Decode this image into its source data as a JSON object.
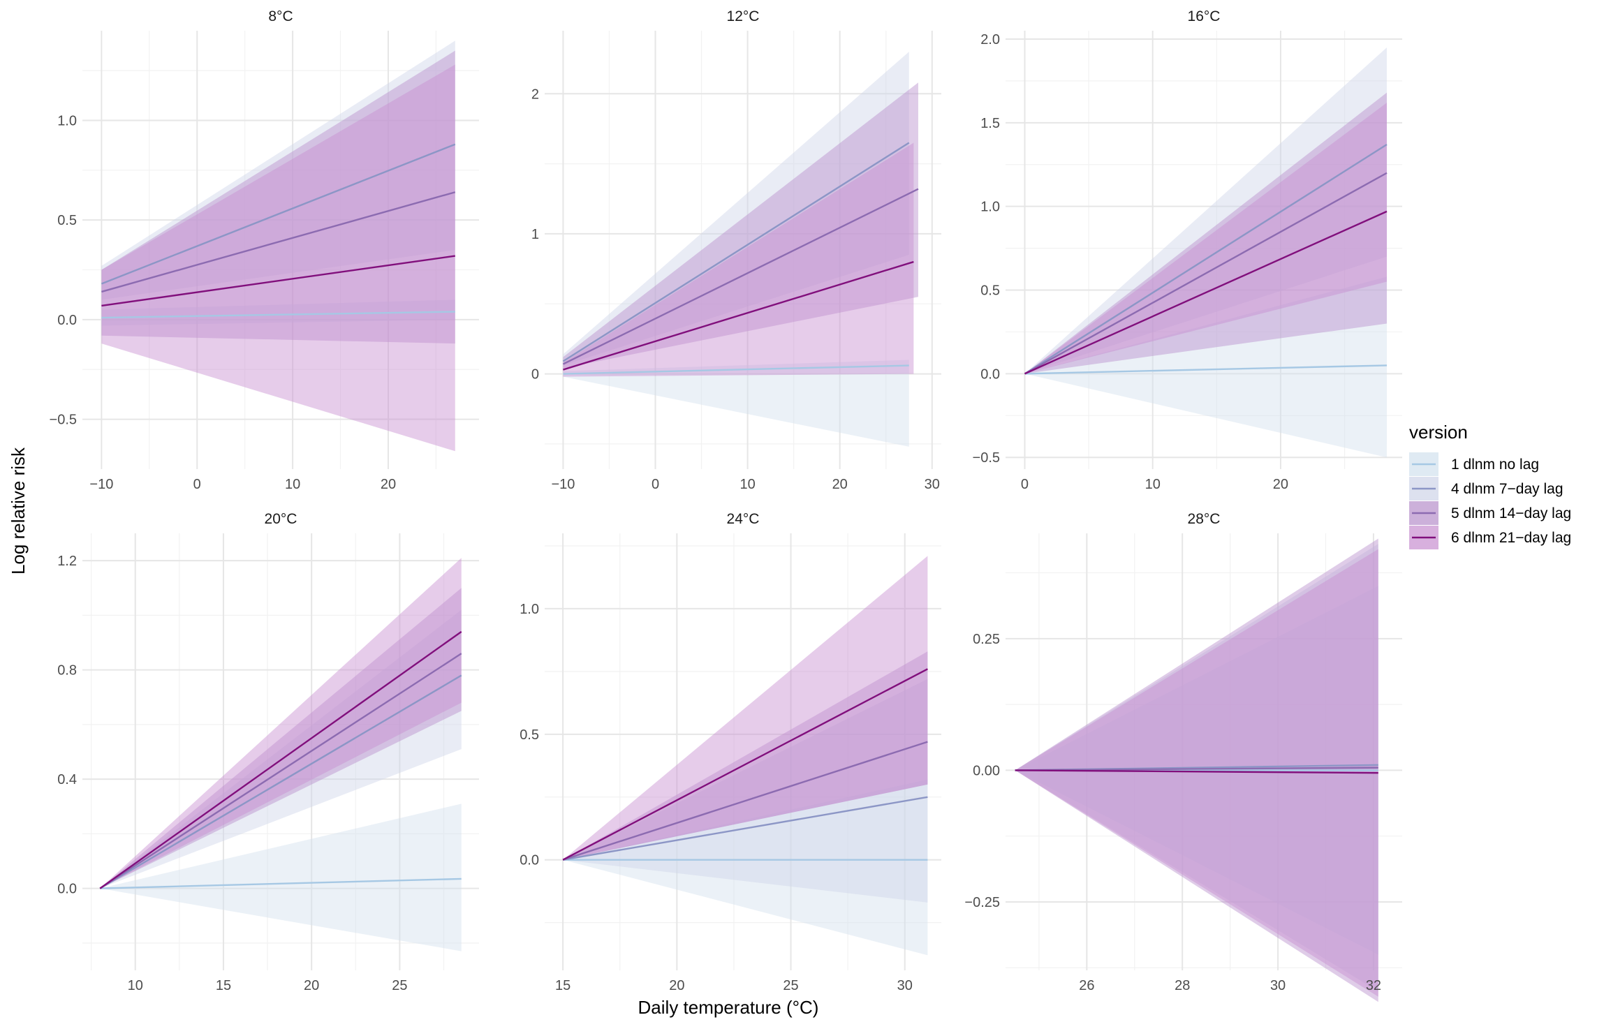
{
  "figure": {
    "ylabel": "Log relative risk",
    "xlabel": "Daily temperature (°C)",
    "legend": {
      "title": "version",
      "position": "right",
      "items": [
        {
          "label": "1 dlnm no lag",
          "line": "#a6c8e4",
          "fill": "#d2e1ee"
        },
        {
          "label": "4 dlnm 7−day lag",
          "line": "#8c96c6",
          "fill": "#cfd4e8"
        },
        {
          "label": "5 dlnm 14−day lag",
          "line": "#8c6bb1",
          "fill": "#b78fcb"
        },
        {
          "label": "6 dlnm 21−day lag",
          "line": "#810f7c",
          "fill": "#c88ed0"
        }
      ]
    }
  },
  "chart_data": [
    {
      "type": "line",
      "title": "8°C",
      "xlim": [
        -12,
        29.5
      ],
      "ylim": [
        -0.75,
        1.45
      ],
      "xticks": [
        -10,
        0,
        10,
        20
      ],
      "yticks": [
        -0.5,
        0.0,
        0.5,
        1.0
      ],
      "xtick_labels": [
        "−10",
        "0",
        "10",
        "20"
      ],
      "ytick_labels": [
        "−0.5",
        "0.0",
        "0.5",
        "1.0"
      ],
      "series": [
        {
          "name": "1 dlnm no lag",
          "x": [
            -10,
            27
          ],
          "y": [
            0.01,
            0.04
          ],
          "lower": [
            -0.03,
            0.0
          ],
          "upper": [
            0.05,
            0.1
          ]
        },
        {
          "name": "4 dlnm 7−day lag",
          "x": [
            -10,
            27
          ],
          "y": [
            0.18,
            0.88
          ],
          "lower": [
            0.1,
            0.35
          ],
          "upper": [
            0.27,
            1.4
          ]
        },
        {
          "name": "5 dlnm 14−day lag",
          "x": [
            -10,
            27
          ],
          "y": [
            0.14,
            0.64
          ],
          "lower": [
            -0.08,
            -0.12
          ],
          "upper": [
            0.25,
            1.35
          ]
        },
        {
          "name": "6 dlnm 21−day lag",
          "x": [
            -10,
            27
          ],
          "y": [
            0.07,
            0.32
          ],
          "lower": [
            -0.12,
            -0.66
          ],
          "upper": [
            0.25,
            1.28
          ]
        }
      ]
    },
    {
      "type": "line",
      "title": "12°C",
      "xlim": [
        -12,
        31
      ],
      "ylim": [
        -0.68,
        2.45
      ],
      "xticks": [
        -10,
        0,
        10,
        20,
        30
      ],
      "yticks": [
        0,
        1,
        2
      ],
      "xtick_labels": [
        "−10",
        "0",
        "10",
        "20",
        "30"
      ],
      "ytick_labels": [
        "0",
        "1",
        "2"
      ],
      "series": [
        {
          "name": "1 dlnm no lag",
          "x": [
            -10,
            27.5
          ],
          "y": [
            0.0,
            0.06
          ],
          "lower": [
            -0.02,
            -0.52
          ],
          "upper": [
            0.02,
            0.1
          ]
        },
        {
          "name": "4 dlnm 7−day lag",
          "x": [
            -10,
            27.5
          ],
          "y": [
            0.09,
            1.65
          ],
          "lower": [
            0.06,
            0.85
          ],
          "upper": [
            0.14,
            2.3
          ]
        },
        {
          "name": "5 dlnm 14−day lag",
          "x": [
            -10,
            28.5
          ],
          "y": [
            0.07,
            1.32
          ],
          "lower": [
            0.04,
            0.55
          ],
          "upper": [
            0.12,
            2.08
          ]
        },
        {
          "name": "6 dlnm 21−day lag",
          "x": [
            -10,
            28
          ],
          "y": [
            0.03,
            0.8
          ],
          "lower": [
            -0.02,
            0.0
          ],
          "upper": [
            0.08,
            1.65
          ]
        }
      ]
    },
    {
      "type": "line",
      "title": "16°C",
      "xlim": [
        -1.5,
        29.5
      ],
      "ylim": [
        -0.57,
        2.05
      ],
      "xticks": [
        0,
        10,
        20
      ],
      "yticks": [
        -0.5,
        0.0,
        0.5,
        1.0,
        1.5,
        2.0
      ],
      "xtick_labels": [
        "0",
        "10",
        "20"
      ],
      "ytick_labels": [
        "−0.5",
        "0.0",
        "0.5",
        "1.0",
        "1.5",
        "2.0"
      ],
      "series": [
        {
          "name": "1 dlnm no lag",
          "x": [
            0,
            28.3
          ],
          "y": [
            0.0,
            0.05
          ],
          "lower": [
            0.0,
            -0.5
          ],
          "upper": [
            0.0,
            0.58
          ]
        },
        {
          "name": "4 dlnm 7−day lag",
          "x": [
            0,
            28.3
          ],
          "y": [
            0.0,
            1.37
          ],
          "lower": [
            0.0,
            0.7
          ],
          "upper": [
            0.0,
            1.95
          ]
        },
        {
          "name": "5 dlnm 14−day lag",
          "x": [
            0,
            28.3
          ],
          "y": [
            0.0,
            1.2
          ],
          "lower": [
            0.0,
            0.3
          ],
          "upper": [
            0.0,
            1.68
          ]
        },
        {
          "name": "6 dlnm 21−day lag",
          "x": [
            0,
            28.3
          ],
          "y": [
            0.0,
            0.97
          ],
          "lower": [
            0.0,
            0.55
          ],
          "upper": [
            0.0,
            1.62
          ]
        }
      ]
    },
    {
      "type": "line",
      "title": "20°C",
      "xlim": [
        7,
        29.5
      ],
      "ylim": [
        -0.3,
        1.3
      ],
      "xticks": [
        10,
        15,
        20,
        25
      ],
      "yticks": [
        0.0,
        0.4,
        0.8,
        1.2
      ],
      "xtick_labels": [
        "10",
        "15",
        "20",
        "25"
      ],
      "ytick_labels": [
        "0.0",
        "0.4",
        "0.8",
        "1.2"
      ],
      "series": [
        {
          "name": "1 dlnm no lag",
          "x": [
            8,
            28.5
          ],
          "y": [
            0.0,
            0.035
          ],
          "lower": [
            0.0,
            -0.23
          ],
          "upper": [
            0.0,
            0.31
          ]
        },
        {
          "name": "4 dlnm 7−day lag",
          "x": [
            8,
            28.5
          ],
          "y": [
            0.0,
            0.78
          ],
          "lower": [
            0.0,
            0.51
          ],
          "upper": [
            0.0,
            1.02
          ]
        },
        {
          "name": "5 dlnm 14−day lag",
          "x": [
            8,
            28.5
          ],
          "y": [
            0.0,
            0.86
          ],
          "lower": [
            0.0,
            0.65
          ],
          "upper": [
            0.0,
            1.1
          ]
        },
        {
          "name": "6 dlnm 21−day lag",
          "x": [
            8,
            28.5
          ],
          "y": [
            0.0,
            0.94
          ],
          "lower": [
            0.0,
            0.68
          ],
          "upper": [
            0.0,
            1.21
          ]
        }
      ]
    },
    {
      "type": "line",
      "title": "24°C",
      "xlim": [
        14.2,
        31.6
      ],
      "ylim": [
        -0.44,
        1.3
      ],
      "xticks": [
        15,
        20,
        25,
        30
      ],
      "yticks": [
        0.0,
        0.5,
        1.0
      ],
      "xtick_labels": [
        "15",
        "20",
        "25",
        "30"
      ],
      "ytick_labels": [
        "0.0",
        "0.5",
        "1.0"
      ],
      "series": [
        {
          "name": "1 dlnm no lag",
          "x": [
            15,
            31
          ],
          "y": [
            0.0,
            0.0
          ],
          "lower": [
            0.0,
            -0.38
          ],
          "upper": [
            0.0,
            0.32
          ]
        },
        {
          "name": "4 dlnm 7−day lag",
          "x": [
            15,
            31
          ],
          "y": [
            0.0,
            0.25
          ],
          "lower": [
            0.0,
            -0.17
          ],
          "upper": [
            0.0,
            0.72
          ]
        },
        {
          "name": "5 dlnm 14−day lag",
          "x": [
            15,
            31
          ],
          "y": [
            0.0,
            0.47
          ],
          "lower": [
            0.0,
            0.3
          ],
          "upper": [
            0.0,
            0.83
          ]
        },
        {
          "name": "6 dlnm 21−day lag",
          "x": [
            15,
            31
          ],
          "y": [
            0.0,
            0.76
          ],
          "lower": [
            0.0,
            0.3
          ],
          "upper": [
            0.0,
            1.21
          ]
        }
      ]
    },
    {
      "type": "line",
      "title": "28°C",
      "xlim": [
        24.3,
        32.6
      ],
      "ylim": [
        -0.38,
        0.45
      ],
      "xticks": [
        26,
        28,
        30,
        32
      ],
      "yticks": [
        -0.25,
        0.0,
        0.25
      ],
      "xtick_labels": [
        "26",
        "28",
        "30",
        "32"
      ],
      "ytick_labels": [
        "−0.25",
        "0.00",
        "0.25"
      ],
      "series": [
        {
          "name": "1 dlnm no lag",
          "x": [
            24.5,
            32.1
          ],
          "y": [
            0.0,
            0.0
          ],
          "lower": [
            0.0,
            -0.35
          ],
          "upper": [
            0.0,
            0.35
          ]
        },
        {
          "name": "4 dlnm 7−day lag",
          "x": [
            24.5,
            32.1
          ],
          "y": [
            0.0,
            0.01
          ],
          "lower": [
            0.0,
            -0.42
          ],
          "upper": [
            0.0,
            0.43
          ]
        },
        {
          "name": "5 dlnm 14−day lag",
          "x": [
            24.5,
            32.1
          ],
          "y": [
            0.0,
            0.005
          ],
          "lower": [
            0.0,
            -0.44
          ],
          "upper": [
            0.0,
            0.44
          ]
        },
        {
          "name": "6 dlnm 21−day lag",
          "x": [
            24.5,
            32.1
          ],
          "y": [
            0.0,
            -0.005
          ],
          "lower": [
            0.0,
            -0.43
          ],
          "upper": [
            0.0,
            0.42
          ]
        }
      ]
    }
  ]
}
